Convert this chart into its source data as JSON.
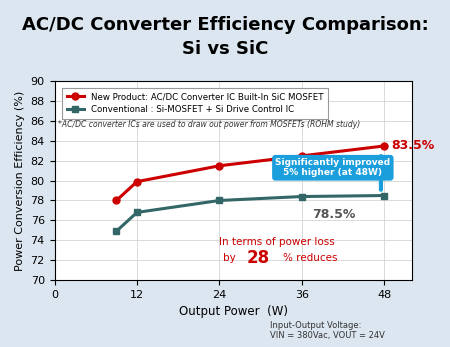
{
  "title_line1": "AC/DC Converter Efficiency Comparison:",
  "title_line2": "Si vs SiC",
  "subtitle": "*AC/DC converter ICs are used to draw out power from MOSFETs (ROHM study)",
  "xlabel": "Output Power  (W)",
  "ylabel": "Power Conversion Efficiency (%)",
  "background_color": "#dce6f0",
  "plot_bg_color": "#ffffff",
  "xlim": [
    0,
    52
  ],
  "ylim": [
    70,
    90
  ],
  "xticks": [
    0,
    12,
    24,
    36,
    48
  ],
  "yticks": [
    70,
    72,
    74,
    76,
    78,
    80,
    82,
    84,
    86,
    88,
    90
  ],
  "sic_x": [
    9,
    12,
    24,
    36,
    48
  ],
  "sic_y": [
    78.0,
    79.9,
    81.5,
    82.5,
    83.5
  ],
  "si_x": [
    9,
    12,
    24,
    36,
    48
  ],
  "si_y": [
    74.9,
    76.8,
    78.0,
    78.4,
    78.5
  ],
  "sic_color": "#cc0000",
  "si_color": "#336666",
  "sic_label": "New Product: AC/DC Converter IC Built-In SiC MOSFET",
  "si_label": "Conventional : Si-MOSFET + Si Drive Control IC",
  "arrow_box_text": "Significantly improved\n5% higher (at 48W)",
  "arrow_box_bg": "#1a9edc",
  "arrow_box_text_color": "#ffffff",
  "power_loss_color": "#cc0000",
  "footer_text_line1": "Input-Output Voltage:",
  "footer_text_line2": "VIN = 380Vac, VOUT = 24V"
}
